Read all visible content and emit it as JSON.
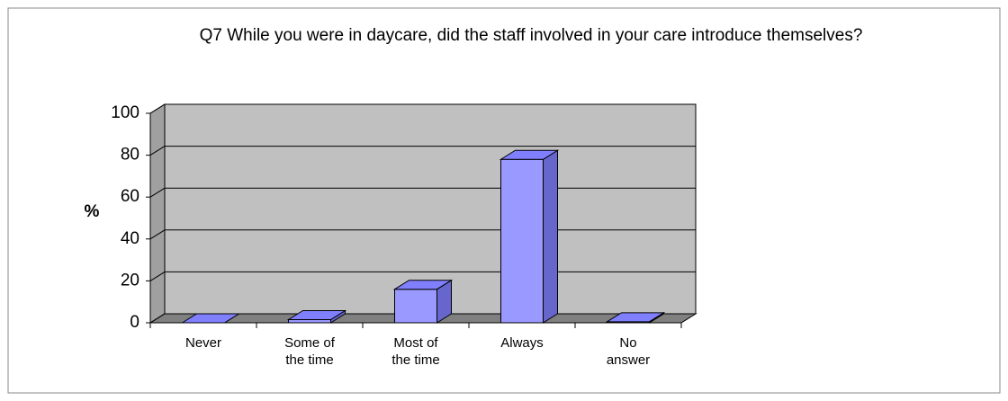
{
  "chart_data": {
    "type": "bar3d",
    "title": "Q7  While you were in daycare, did the staff involved in your care introduce themselves?",
    "ylabel": "%",
    "categories": [
      "Never",
      "Some of the time",
      "Most of the time",
      "Always",
      "No answer"
    ],
    "values": [
      0,
      1.5,
      16,
      78,
      0.5
    ],
    "color": "#9999ff",
    "ylim": [
      0,
      100
    ],
    "yticks": [
      0,
      20,
      40,
      60,
      80,
      100
    ],
    "grid": true
  }
}
